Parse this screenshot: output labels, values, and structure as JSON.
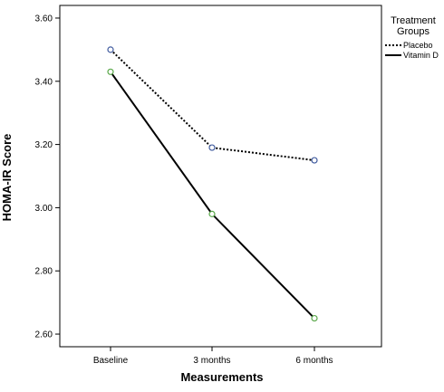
{
  "chart_data": {
    "type": "line",
    "categories": [
      "Baseline",
      "3 months",
      "6 months"
    ],
    "series": [
      {
        "name": "Placebo",
        "values": [
          3.5,
          3.19,
          3.15
        ],
        "line_style": "dotted",
        "marker_color": "#3f5a9e"
      },
      {
        "name": "Vitamin D",
        "values": [
          3.43,
          2.98,
          2.65
        ],
        "line_style": "solid",
        "marker_color": "#5aa84a"
      }
    ],
    "xlabel": "Measurements",
    "ylabel": "HOMA-IR Score",
    "ylim": [
      2.56,
      3.64
    ],
    "yticks": [
      2.6,
      2.8,
      3.0,
      3.2,
      3.4,
      3.6
    ],
    "ytick_labels": [
      "2.60",
      "2.80",
      "3.00",
      "3.20",
      "3.40",
      "3.60"
    ],
    "legend": {
      "title_lines": [
        "Treatment",
        "Groups"
      ],
      "placement": "top-right"
    },
    "grid": false
  }
}
